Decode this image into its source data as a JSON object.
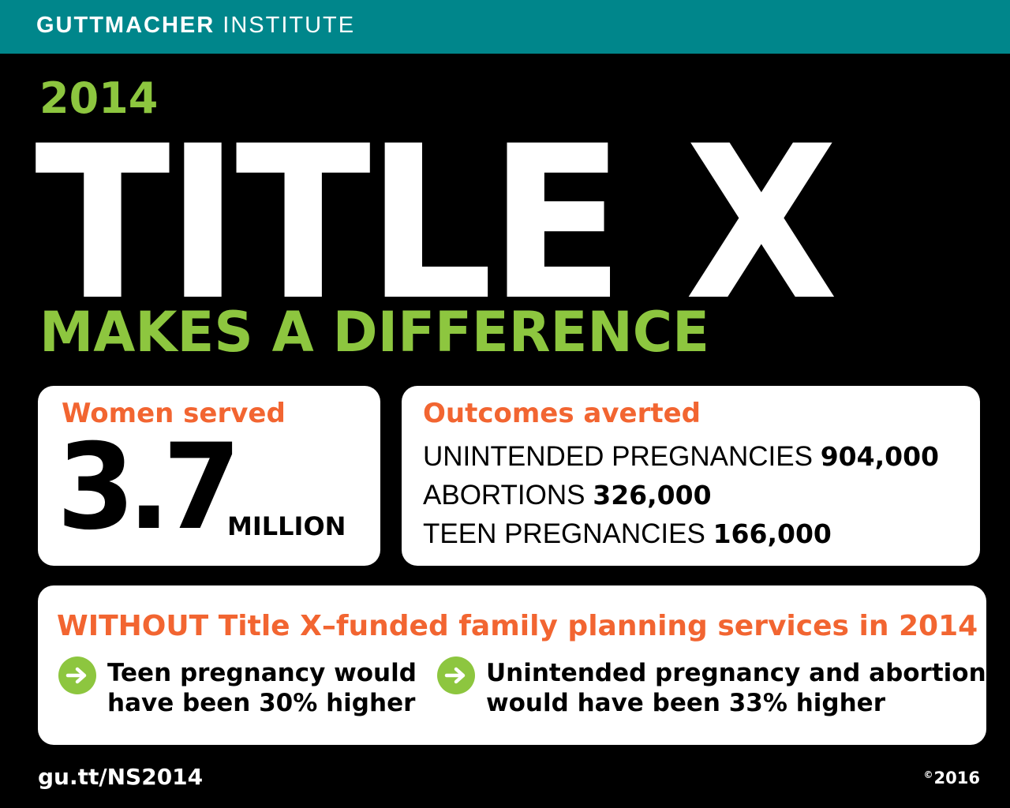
{
  "header": {
    "org_bold": "GUTTMACHER",
    "org_light": "INSTITUTE"
  },
  "hero": {
    "year": "2014",
    "title": "TITLE X",
    "subtitle": "MAKES A DIFFERENCE"
  },
  "women_served": {
    "label": "Women served",
    "number": "3.7",
    "unit": "MILLION"
  },
  "outcomes": {
    "label": "Outcomes averted",
    "items": [
      {
        "label": "UNINTENDED PREGNANCIES",
        "value": "904,000"
      },
      {
        "label": "ABORTIONS",
        "value": "326,000"
      },
      {
        "label": "TEEN PREGNANCIES",
        "value": "166,000"
      }
    ]
  },
  "without": {
    "heading": "WITHOUT Title X–funded family planning services in 2014",
    "points": [
      {
        "line1": "Teen pregnancy would",
        "line2": "have been 30% higher"
      },
      {
        "line1": "Unintended pregnancy and abortion",
        "line2": "would have been 33% higher"
      }
    ]
  },
  "footer": {
    "link": "gu.tt/NS2014",
    "copyright_symbol": "©",
    "year": "2016"
  },
  "colors": {
    "teal_bar": "#00868b",
    "green": "#8dc63f",
    "orange": "#f26531",
    "background": "#000000"
  }
}
